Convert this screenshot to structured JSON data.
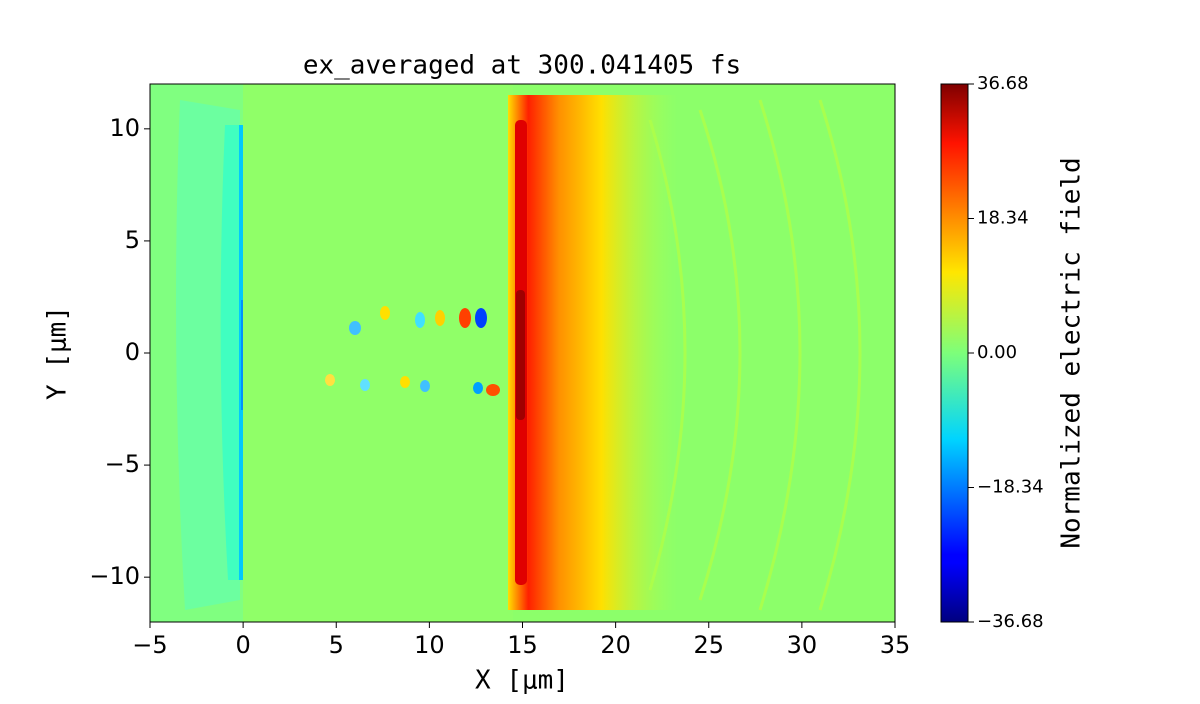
{
  "chart_data": {
    "type": "heatmap",
    "title": "ex_averaged at 300.041405 fs",
    "x_label": "X [μm]",
    "y_label": "Y [μm]",
    "xlim": [
      -5,
      35
    ],
    "xticks": [
      {
        "value": -5,
        "label": "−5"
      },
      0,
      5,
      10,
      15,
      20,
      25,
      30,
      35
    ],
    "ylim": [
      -12,
      12
    ],
    "yticks": [
      {
        "value": -10,
        "label": "−10"
      },
      {
        "value": -5,
        "label": "−5"
      },
      0,
      5,
      10
    ],
    "colormap": "jet",
    "colorbar_label": "Normalized electric field",
    "clim": [
      -36.68,
      36.68
    ],
    "cticks": [
      {
        "value": -36.68,
        "label": "−36.68"
      },
      {
        "value": -18.34,
        "label": "−18.34"
      },
      {
        "value": 0,
        "label": "0.00"
      },
      18.34,
      36.68
    ]
  }
}
